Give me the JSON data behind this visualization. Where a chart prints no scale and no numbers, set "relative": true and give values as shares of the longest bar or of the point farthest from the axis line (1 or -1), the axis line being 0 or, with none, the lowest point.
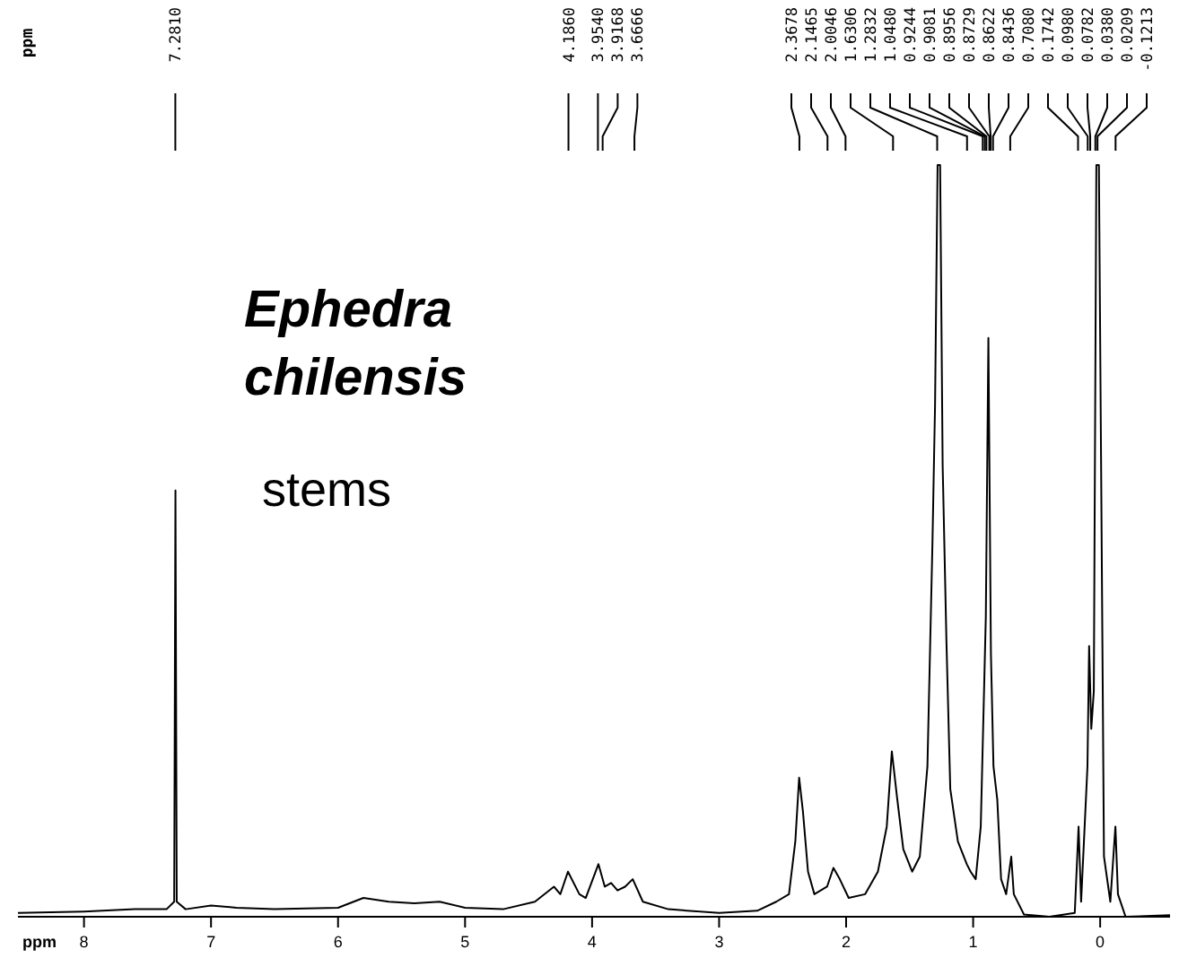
{
  "chart_data": {
    "type": "line",
    "title": "Ephedra chilensis",
    "subtitle": "stems",
    "xlabel": "ppm",
    "relative": true,
    "line_style": "solid",
    "xlim": [
      8.52,
      -0.55
    ],
    "xticks": [
      8,
      7,
      6,
      5,
      4,
      3,
      2,
      1,
      0
    ],
    "series": [
      {
        "color": "#000000",
        "x": [
          8.52,
          8.0,
          7.6,
          7.35,
          7.29,
          7.28,
          7.27,
          7.2,
          7.0,
          6.8,
          6.5,
          6.0,
          5.8,
          5.6,
          5.4,
          5.2,
          5.0,
          4.7,
          4.45,
          4.3,
          4.25,
          4.19,
          4.1,
          4.05,
          3.95,
          3.9,
          3.85,
          3.8,
          3.74,
          3.68,
          3.6,
          3.4,
          3.0,
          2.7,
          2.55,
          2.45,
          2.4,
          2.37,
          2.34,
          2.3,
          2.25,
          2.15,
          2.1,
          2.05,
          1.98,
          1.85,
          1.75,
          1.68,
          1.64,
          1.6,
          1.55,
          1.48,
          1.42,
          1.36,
          1.32,
          1.3,
          1.28,
          1.26,
          1.24,
          1.21,
          1.18,
          1.12,
          1.05,
          1.02,
          0.98,
          0.94,
          0.9,
          0.88,
          0.86,
          0.84,
          0.81,
          0.78,
          0.74,
          0.7,
          0.68,
          0.6,
          0.4,
          0.2,
          0.17,
          0.15,
          0.1,
          0.087,
          0.07,
          0.05,
          0.03,
          0.01,
          -0.03,
          -0.08,
          -0.12,
          -0.14,
          -0.2,
          -0.55
        ],
        "values": [
          0.005,
          0.007,
          0.01,
          0.01,
          0.02,
          0.567,
          0.02,
          0.01,
          0.015,
          0.012,
          0.01,
          0.012,
          0.025,
          0.02,
          0.018,
          0.02,
          0.012,
          0.01,
          0.02,
          0.04,
          0.03,
          0.06,
          0.03,
          0.025,
          0.07,
          0.04,
          0.045,
          0.035,
          0.04,
          0.05,
          0.02,
          0.01,
          0.005,
          0.008,
          0.02,
          0.03,
          0.1,
          0.185,
          0.14,
          0.06,
          0.03,
          0.04,
          0.065,
          0.05,
          0.025,
          0.03,
          0.06,
          0.12,
          0.22,
          0.16,
          0.09,
          0.06,
          0.08,
          0.2,
          0.5,
          0.68,
          1,
          1,
          0.6,
          0.365,
          0.17,
          0.1,
          0.07,
          0.06,
          0.05,
          0.12,
          0.4,
          0.77,
          0.35,
          0.2,
          0.156,
          0.05,
          0.03,
          0.08,
          0.03,
          0.003,
          0,
          0.005,
          0.12,
          0.02,
          0.2,
          0.36,
          0.25,
          0.3,
          1,
          1,
          0.08,
          0.02,
          0.12,
          0.03,
          0,
          0.002
        ]
      }
    ],
    "annotations": [
      "ppm",
      "7.2810",
      "4.1860",
      "3.9540",
      "3.9168",
      "3.6666",
      "2.3678",
      "2.1465",
      "2.0046",
      "1.6306",
      "1.2832",
      "1.0480",
      "0.9244",
      "0.9081",
      "0.8956",
      "0.8729",
      "0.8622",
      "0.8436",
      "0.7080",
      "0.1742",
      "0.0980",
      "0.0782",
      "0.0380",
      "0.0209",
      "-0.1213"
    ]
  }
}
